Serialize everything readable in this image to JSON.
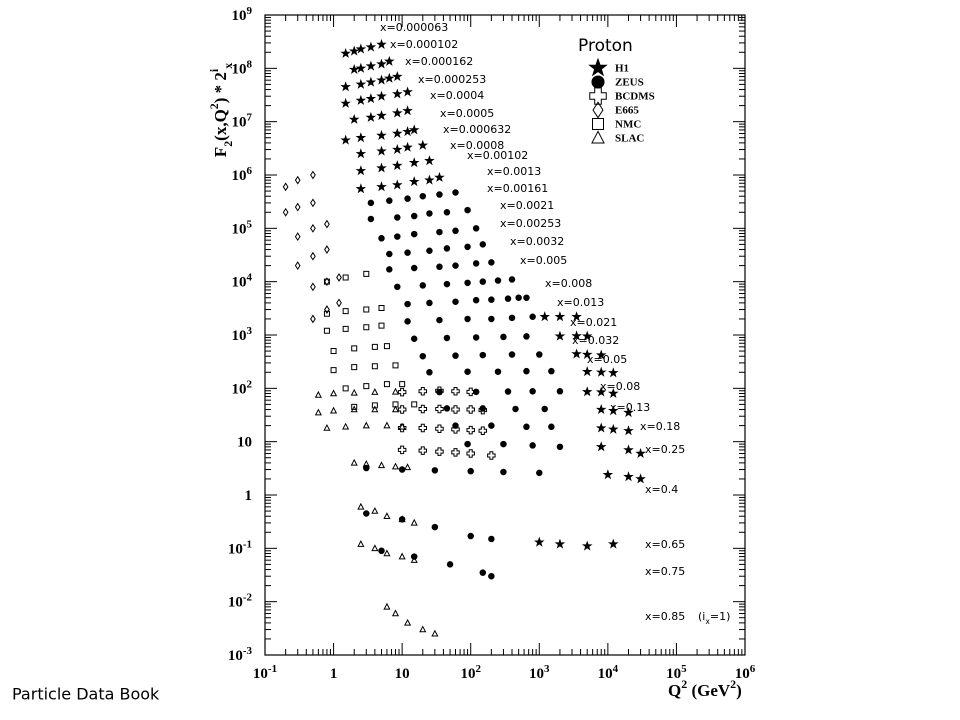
{
  "chart_data": {
    "type": "scatter",
    "title": "Proton",
    "y_label": [
      {
        "text": "F"
      },
      {
        "sub": "2"
      },
      {
        "text": "(x,Q"
      },
      {
        "sup": "2"
      },
      {
        "text": ") * 2"
      },
      {
        "sup": "i"
      },
      {
        "sub": "x"
      }
    ],
    "x_label": [
      {
        "text": "Q"
      },
      {
        "sup": "2"
      },
      {
        "text": " (GeV"
      },
      {
        "sup": "2"
      },
      {
        "text": ")"
      }
    ],
    "x_log": true,
    "y_log": true,
    "xlim": [
      0.1,
      1000000
    ],
    "ylim": [
      0.001,
      1000000000
    ],
    "xticks": [
      {
        "value": 0.1,
        "label": "10",
        "sup": "-1"
      },
      1,
      10,
      {
        "value": 100,
        "label": "10",
        "sup": "2"
      },
      {
        "value": 1000,
        "label": "10",
        "sup": "3"
      },
      {
        "value": 10000,
        "label": "10",
        "sup": "4"
      },
      {
        "value": 100000,
        "label": "10",
        "sup": "5"
      },
      {
        "value": 1000000,
        "label": "10",
        "sup": "6"
      }
    ],
    "yticks": [
      {
        "value": 0.001,
        "label": "10",
        "sup": "-3"
      },
      {
        "value": 0.01,
        "label": "10",
        "sup": "-2"
      },
      {
        "value": 0.1,
        "label": "10",
        "sup": "-1"
      },
      1,
      10,
      {
        "value": 100,
        "label": "10",
        "sup": "2"
      },
      {
        "value": 1000,
        "label": "10",
        "sup": "3"
      },
      {
        "value": 10000,
        "label": "10",
        "sup": "4"
      },
      {
        "value": 100000,
        "label": "10",
        "sup": "5"
      },
      {
        "value": 1000000,
        "label": "10",
        "sup": "6"
      },
      {
        "value": 10000000,
        "label": "10",
        "sup": "7"
      },
      {
        "value": 100000000,
        "label": "10",
        "sup": "8"
      },
      {
        "value": 1000000000,
        "label": "10",
        "sup": "9"
      }
    ],
    "bin_labels": [
      "x=0.000063",
      "x=0.000102",
      "x=0.000162",
      "x=0.000253",
      "x=0.0004",
      "x=0.0005",
      "x=0.000632",
      "x=0.0008",
      "x=0.00102",
      "x=0.0013",
      "x=0.00161",
      "x=0.0021",
      "x=0.00253",
      "x=0.0032",
      "x=0.005",
      "x=0.008",
      "x=0.013",
      "x=0.021",
      "x=0.032",
      "x=0.05",
      "x=0.08",
      "x=0.13",
      "x=0.18",
      "x=0.25",
      "x=0.4",
      "x=0.65",
      "x=0.75",
      "x=0.85"
    ],
    "scale_note": [
      {
        "text": "(i"
      },
      {
        "sub": "x"
      },
      {
        "text": "=1)"
      }
    ],
    "source": "Particle Data Book",
    "series": [
      {
        "name": "H1",
        "marker": "star",
        "color": "#000000",
        "x": [
          1.5,
          2,
          2.5,
          3.5,
          5,
          2,
          2.5,
          3.5,
          5,
          6.5,
          1.5,
          2.5,
          3.5,
          5,
          6.5,
          8.5,
          1.5,
          2.5,
          3.5,
          5,
          8.5,
          12,
          2,
          3.5,
          5,
          8.5,
          12,
          1.5,
          2.5,
          5,
          8.5,
          12,
          15,
          2.5,
          5,
          8.5,
          12,
          20,
          2.5,
          5,
          8.5,
          15,
          25,
          2.5,
          5,
          8.5,
          15,
          25,
          35,
          1200,
          2000,
          3500,
          2000,
          3500,
          5000,
          3500,
          5000,
          8000,
          5000,
          8000,
          12000,
          5000,
          8000,
          12000,
          8000,
          12000,
          20000,
          8000,
          12000,
          20000,
          8000,
          20000,
          30000,
          10000,
          20000,
          30000,
          1000,
          2000,
          5000,
          12000
        ],
        "values": [
          190000000,
          210000000,
          230000000,
          250000000,
          280000000,
          95000000,
          100000000,
          110000000,
          120000000,
          135000000,
          45000000,
          50000000,
          55000000,
          60000000,
          65000000,
          70000000,
          22000000,
          25000000,
          27000000,
          30000000,
          33000000,
          36000000,
          11000000,
          12000000,
          13000000,
          14500000,
          16000000,
          4500000,
          5000000,
          5500000,
          6000000,
          6500000,
          7000000,
          2500000,
          2800000,
          3000000,
          3300000,
          3600000,
          1200000,
          1350000,
          1500000,
          1700000,
          1850000,
          550000,
          600000,
          650000,
          750000,
          800000,
          900000,
          2200,
          2200,
          2200,
          950,
          960,
          950,
          440,
          430,
          420,
          205,
          200,
          195,
          86,
          85,
          80,
          40,
          38,
          35,
          18,
          17,
          16,
          8,
          7,
          6,
          2.4,
          2.2,
          2,
          0.13,
          0.12,
          0.11,
          0.12
        ]
      },
      {
        "name": "ZEUS",
        "marker": "circle",
        "color": "#000000",
        "x": [
          3.5,
          6.5,
          12,
          20,
          35,
          60,
          3.5,
          8.5,
          15,
          25,
          45,
          90,
          5,
          8.5,
          15,
          35,
          60,
          120,
          6.5,
          12,
          25,
          45,
          90,
          150,
          6.5,
          15,
          35,
          60,
          120,
          200,
          8.5,
          20,
          45,
          90,
          150,
          250,
          400,
          12,
          25,
          60,
          120,
          200,
          350,
          500,
          650,
          12,
          35,
          90,
          200,
          400,
          800,
          15,
          45,
          120,
          300,
          650,
          20,
          60,
          150,
          400,
          1000,
          25,
          90,
          250,
          650,
          1500,
          35,
          120,
          350,
          800,
          2000,
          45,
          150,
          450,
          1200,
          60,
          200,
          650,
          1500,
          90,
          300,
          800,
          2000,
          3,
          10,
          30,
          100,
          300,
          1000,
          3,
          10,
          30,
          100,
          200,
          5,
          15,
          50,
          150,
          200
        ],
        "values": [
          300000,
          330000,
          360000,
          400000,
          430000,
          470000,
          150000,
          160000,
          170000,
          190000,
          200000,
          220000,
          65000,
          70000,
          78000,
          85000,
          90000,
          100000,
          33000,
          35000,
          38000,
          42000,
          45000,
          50000,
          17000,
          18000,
          19000,
          20000,
          22000,
          23000,
          8000,
          8500,
          9000,
          9500,
          10000,
          10500,
          11000,
          3800,
          4000,
          4200,
          4500,
          4600,
          4800,
          5000,
          5000,
          1800,
          1900,
          2000,
          2000,
          2100,
          2200,
          850,
          880,
          900,
          920,
          940,
          400,
          410,
          420,
          430,
          430,
          200,
          205,
          205,
          210,
          210,
          85,
          86,
          87,
          88,
          88,
          42,
          42,
          41,
          41,
          20,
          20,
          19,
          19,
          9,
          9,
          8.5,
          8,
          3.2,
          3,
          2.9,
          2.8,
          2.7,
          2.6,
          0.45,
          0.35,
          0.25,
          0.17,
          0.15,
          0.09,
          0.07,
          0.05,
          0.035,
          0.03
        ]
      },
      {
        "name": "BCDMS",
        "marker": "cross",
        "color": "#000000",
        "x": [
          10,
          20,
          35,
          60,
          100,
          10,
          20,
          35,
          60,
          100,
          150,
          10,
          20,
          35,
          60,
          100,
          150,
          10,
          20,
          35,
          60,
          100,
          200
        ],
        "values": [
          85,
          88,
          90,
          88,
          86,
          40,
          41,
          41,
          40,
          40,
          39,
          18,
          18,
          17.5,
          17,
          16.5,
          16,
          7,
          6.8,
          6.5,
          6.3,
          6,
          5.5
        ]
      },
      {
        "name": "E665",
        "marker": "diamond",
        "color": "#000000",
        "x": [
          0.2,
          0.3,
          0.5,
          0.2,
          0.3,
          0.5,
          0.3,
          0.5,
          0.8,
          0.3,
          0.5,
          0.8,
          0.5,
          0.8,
          1.2,
          0.5,
          0.8,
          1.2
        ],
        "values": [
          600000,
          800000,
          1000000,
          200000,
          250000,
          300000,
          70000,
          100000,
          120000,
          20000,
          30000,
          40000,
          8000,
          10000,
          12000,
          2000,
          3000,
          4000
        ]
      },
      {
        "name": "NMC",
        "marker": "square",
        "color": "#000000",
        "x": [
          0.8,
          1.5,
          3,
          0.8,
          1.5,
          3,
          5,
          0.8,
          1.5,
          3,
          5,
          1,
          2,
          4,
          6,
          1,
          2,
          4,
          8,
          1.5,
          3,
          6,
          10,
          2,
          4,
          8,
          15
        ],
        "values": [
          10000,
          12000,
          14000,
          2500,
          2800,
          3000,
          3200,
          1200,
          1300,
          1400,
          1500,
          500,
          560,
          600,
          620,
          220,
          250,
          260,
          270,
          100,
          110,
          120,
          120,
          45,
          48,
          50,
          50
        ]
      },
      {
        "name": "SLAC",
        "marker": "triangle",
        "color": "#000000",
        "x": [
          0.6,
          1,
          2,
          4,
          8,
          0.6,
          1,
          2,
          4,
          8,
          0.8,
          1.5,
          3,
          6,
          10,
          2,
          3,
          5,
          8,
          12,
          2.5,
          4,
          6,
          10,
          15,
          2.5,
          4,
          6,
          10,
          15,
          6,
          8,
          12,
          20,
          30
        ],
        "values": [
          75,
          80,
          82,
          85,
          86,
          35,
          38,
          40,
          40,
          40,
          18,
          19,
          20,
          20,
          19,
          4,
          3.8,
          3.6,
          3.4,
          3.3,
          0.6,
          0.5,
          0.4,
          0.35,
          0.3,
          0.12,
          0.1,
          0.08,
          0.07,
          0.06,
          0.008,
          0.006,
          0.004,
          0.003,
          0.0025
        ]
      }
    ]
  }
}
